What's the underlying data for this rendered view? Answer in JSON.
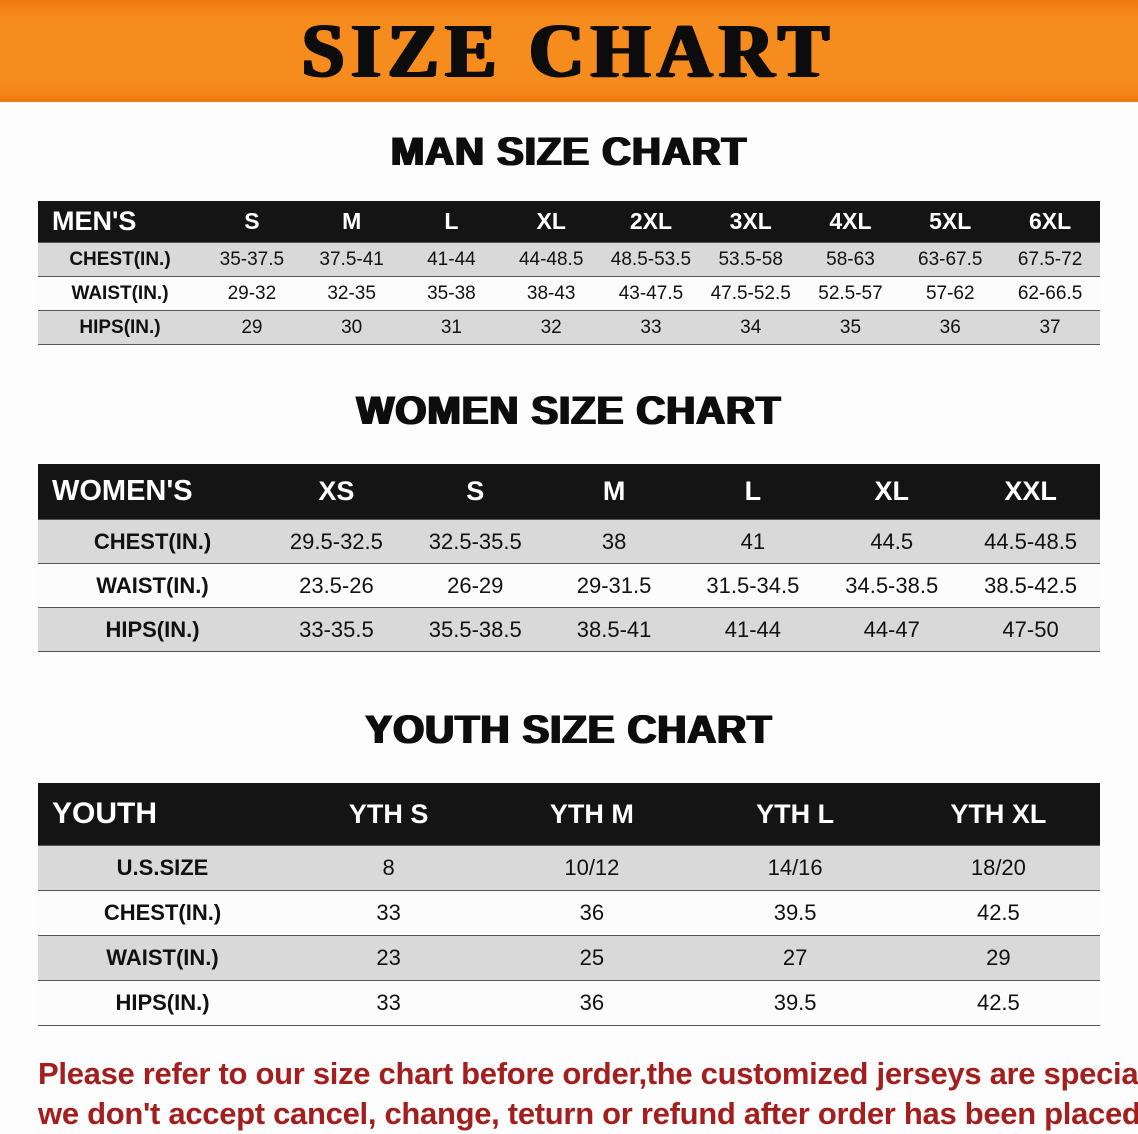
{
  "banner": {
    "title": "SIZE CHART"
  },
  "colors": {
    "banner_bg": "#f78c1e",
    "table_header_bg": "#141414",
    "table_header_text": "#ffffff",
    "row_alt_gray": "#d9d9d9",
    "notice_red": "#a51e1e"
  },
  "sections": [
    {
      "heading": "MAN SIZE CHART",
      "table": {
        "header": [
          "MEN'S",
          "S",
          "M",
          "L",
          "XL",
          "2XL",
          "3XL",
          "4XL",
          "5XL",
          "6XL"
        ],
        "rows": [
          {
            "label": "CHEST(IN.)",
            "values": [
              "35-37.5",
              "37.5-41",
              "41-44",
              "44-48.5",
              "48.5-53.5",
              "53.5-58",
              "58-63",
              "63-67.5",
              "67.5-72"
            ]
          },
          {
            "label": "WAIST(IN.)",
            "values": [
              "29-32",
              "32-35",
              "35-38",
              "38-43",
              "43-47.5",
              "47.5-52.5",
              "52.5-57",
              "57-62",
              "62-66.5"
            ]
          },
          {
            "label": "HIPS(IN.)",
            "values": [
              "29",
              "30",
              "31",
              "32",
              "33",
              "34",
              "35",
              "36",
              "37"
            ]
          }
        ]
      }
    },
    {
      "heading": "WOMEN SIZE CHART",
      "table": {
        "header": [
          "WOMEN'S",
          "XS",
          "S",
          "M",
          "L",
          "XL",
          "XXL"
        ],
        "rows": [
          {
            "label": "CHEST(IN.)",
            "values": [
              "29.5-32.5",
              "32.5-35.5",
              "38",
              "41",
              "44.5",
              "44.5-48.5"
            ]
          },
          {
            "label": "WAIST(IN.)",
            "values": [
              "23.5-26",
              "26-29",
              "29-31.5",
              "31.5-34.5",
              "34.5-38.5",
              "38.5-42.5"
            ]
          },
          {
            "label": "HIPS(IN.)",
            "values": [
              "33-35.5",
              "35.5-38.5",
              "38.5-41",
              "41-44",
              "44-47",
              "47-50"
            ]
          }
        ]
      }
    },
    {
      "heading": "YOUTH SIZE CHART",
      "table": {
        "header": [
          "YOUTH",
          "YTH S",
          "YTH M",
          "YTH L",
          "YTH XL"
        ],
        "rows": [
          {
            "label": "U.S.SIZE",
            "values": [
              "8",
              "10/12",
              "14/16",
              "18/20"
            ]
          },
          {
            "label": "CHEST(IN.)",
            "values": [
              "33",
              "36",
              "39.5",
              "42.5"
            ]
          },
          {
            "label": "WAIST(IN.)",
            "values": [
              "23",
              "25",
              "27",
              "29"
            ]
          },
          {
            "label": "HIPS(IN.)",
            "values": [
              "33",
              "36",
              "39.5",
              "42.5"
            ]
          }
        ]
      }
    }
  ],
  "footer": {
    "lines": [
      "Please refer to our size chart before order,the customized jerseys are special products,",
      "we don't accept cancel, change, teturn or refund after order has been placed!"
    ]
  }
}
